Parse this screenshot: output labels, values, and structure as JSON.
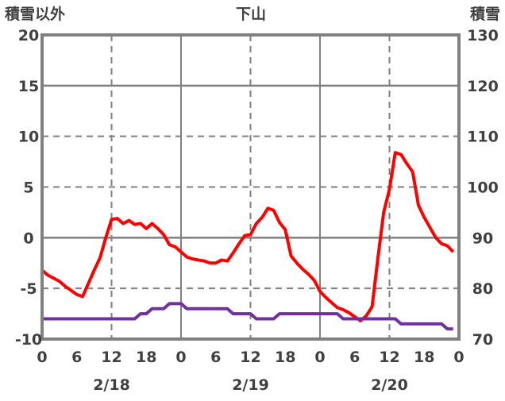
{
  "chart_data": {
    "type": "line",
    "title": "下山",
    "ylabel_left": "積雪以外",
    "ylabel_right": "積雪",
    "ylim_left": [
      -10,
      20
    ],
    "ylim_right": [
      70,
      130
    ],
    "yticks_left": [
      "20",
      "15",
      "10",
      "5",
      "0",
      "-5",
      "-10"
    ],
    "yticks_right": [
      "130",
      "120",
      "110",
      "100",
      "90",
      "80",
      "70"
    ],
    "xlim_hours": [
      0,
      72
    ],
    "xticks": [
      "0",
      "6",
      "12",
      "18",
      "0",
      "6",
      "12",
      "18",
      "0",
      "6",
      "12",
      "18",
      "0"
    ],
    "date_labels": [
      "2/18",
      "2/19",
      "2/20"
    ],
    "grid": true,
    "series": [
      {
        "name": "積雪以外",
        "axis": "left",
        "color": "#ff0000",
        "values": [
          -3.2,
          -3.7,
          -4.0,
          -4.3,
          -4.8,
          -5.2,
          -5.6,
          -5.8,
          -4.5,
          -3.2,
          -2.0,
          0.0,
          1.8,
          1.9,
          1.4,
          1.7,
          1.3,
          1.4,
          0.9,
          1.4,
          0.9,
          0.3,
          -0.7,
          -0.9,
          -1.4,
          -1.9,
          -2.1,
          -2.2,
          -2.3,
          -2.5,
          -2.5,
          -2.2,
          -2.3,
          -1.5,
          -0.6,
          0.2,
          0.3,
          1.4,
          2.0,
          2.9,
          2.7,
          1.5,
          0.8,
          -1.8,
          -2.5,
          -3.1,
          -3.6,
          -4.2,
          -5.3,
          -5.9,
          -6.4,
          -6.9,
          -7.1,
          -7.4,
          -7.8,
          -8.2,
          -7.7,
          -6.8,
          -2.0,
          2.5,
          4.8,
          8.4,
          8.2,
          7.3,
          6.5,
          3.2,
          2.0,
          1.0,
          0.0,
          -0.6,
          -0.8,
          -1.4
        ]
      },
      {
        "name": "積雪",
        "axis": "right",
        "color": "#7030a0",
        "values": [
          74,
          74,
          74,
          74,
          74,
          74,
          74,
          74,
          74,
          74,
          74,
          74,
          74,
          74,
          74,
          74,
          74,
          75,
          75,
          76,
          76,
          76,
          77,
          77,
          77,
          76,
          76,
          76,
          76,
          76,
          76,
          76,
          76,
          75,
          75,
          75,
          75,
          74,
          74,
          74,
          74,
          75,
          75,
          75,
          75,
          75,
          75,
          75,
          75,
          75,
          75,
          75,
          74,
          74,
          74,
          74,
          74,
          74,
          74,
          74,
          74,
          74,
          73,
          73,
          73,
          73,
          73,
          73,
          73,
          73,
          72,
          72
        ]
      }
    ]
  }
}
